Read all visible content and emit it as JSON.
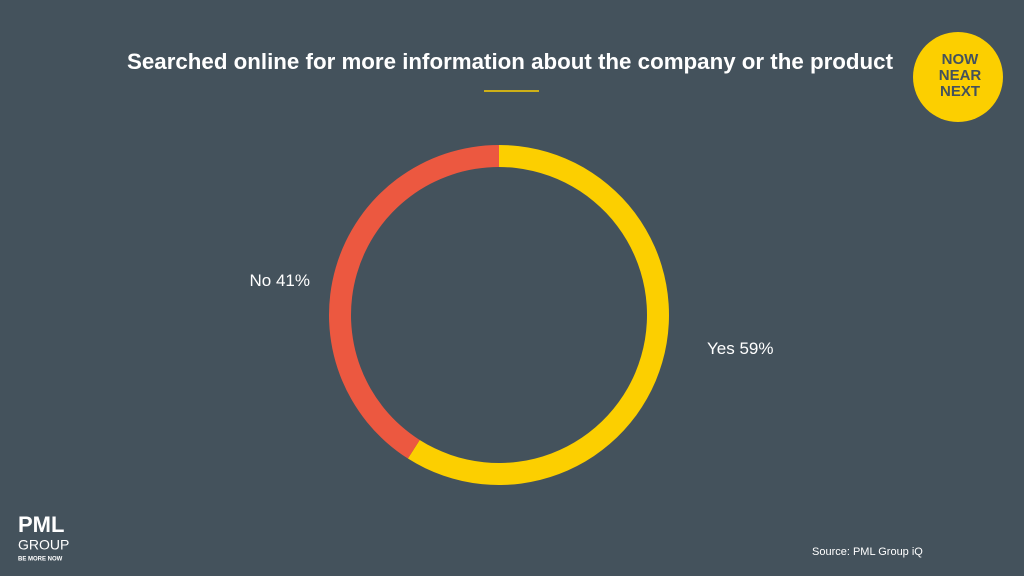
{
  "chart_data": {
    "type": "donut",
    "title": "Searched online for more information about the company or the product",
    "categories": [
      "Yes",
      "No"
    ],
    "values": [
      59,
      41
    ],
    "value_labels": [
      "59%",
      "41%"
    ],
    "colors": [
      "#fccf00",
      "#ec5840"
    ]
  },
  "badge": {
    "lines": [
      "NOW",
      "NEAR",
      "NEXT"
    ]
  },
  "logo": {
    "name": "PML",
    "group": "GROUP",
    "tagline": "BE MORE NOW"
  },
  "source": "Source: PML Group  iQ"
}
